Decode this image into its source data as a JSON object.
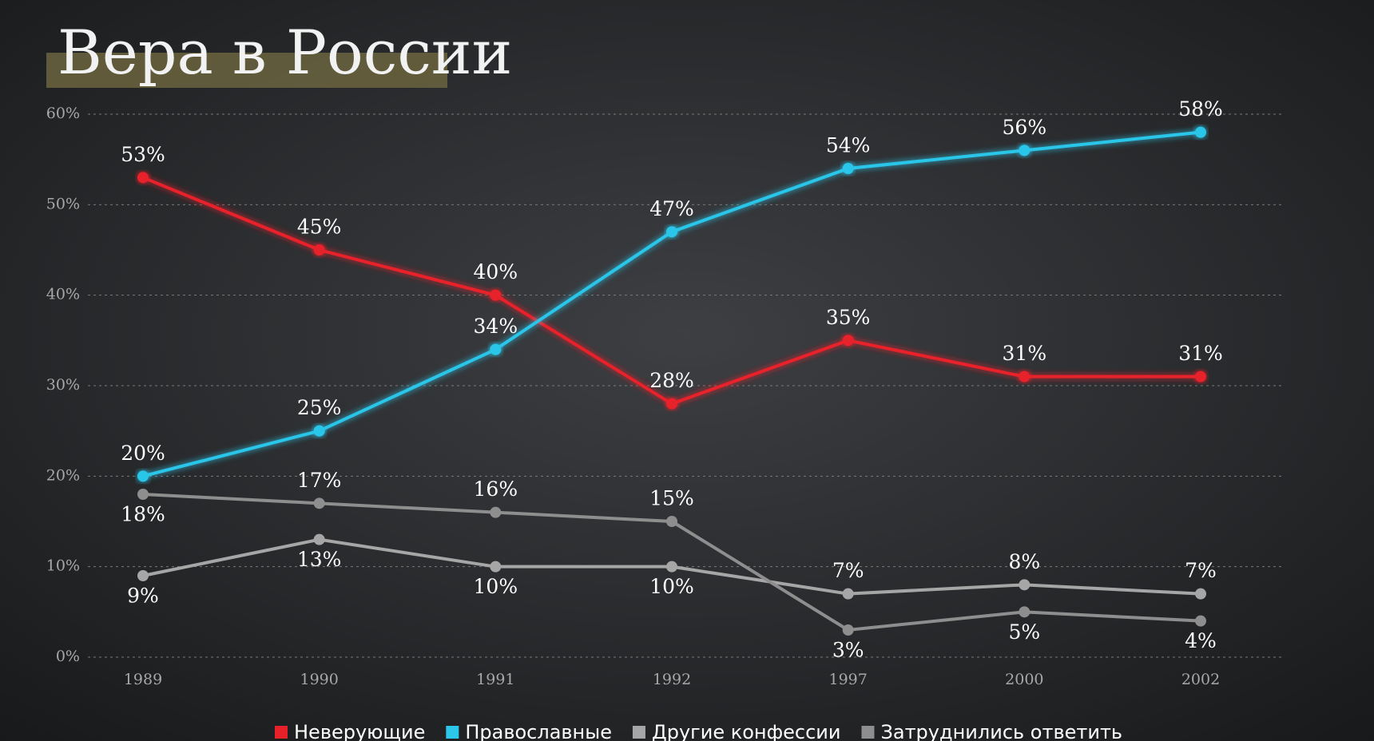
{
  "chart_data": {
    "type": "line",
    "title": "Вера в России",
    "categories": [
      "1989",
      "1990",
      "1991",
      "1992",
      "1997",
      "2000",
      "2002"
    ],
    "ylim": [
      0,
      60
    ],
    "yticks": [
      {
        "value": 0,
        "label": "0%"
      },
      {
        "value": 10,
        "label": "10%"
      },
      {
        "value": 20,
        "label": "20%"
      },
      {
        "value": 30,
        "label": "30%"
      },
      {
        "value": 40,
        "label": "40%"
      },
      {
        "value": 50,
        "label": "50%"
      },
      {
        "value": 60,
        "label": "60%"
      }
    ],
    "grid": true,
    "legend": "bottom",
    "series": [
      {
        "name": "Неверующие",
        "color": "#e8202a",
        "values": [
          53,
          45,
          40,
          28,
          35,
          31,
          31
        ],
        "value_labels": [
          "53%",
          "45%",
          "40%",
          "28%",
          "35%",
          "31%",
          "31%"
        ]
      },
      {
        "name": "Православные",
        "color": "#2bc6ea",
        "values": [
          20,
          25,
          34,
          47,
          54,
          56,
          58
        ],
        "value_labels": [
          "20%",
          "25%",
          "34%",
          "47%",
          "54%",
          "56%",
          "58%"
        ]
      },
      {
        "name": "Другие конфессии",
        "color": "#a6a6a6",
        "values": [
          9,
          13,
          10,
          10,
          7,
          8,
          7
        ],
        "value_labels": [
          "9%",
          "13%",
          "10%",
          "10%",
          "7%",
          "8%",
          "7%"
        ]
      },
      {
        "name": "Затруднились ответить",
        "color": "#8e8e8e",
        "values": [
          18,
          17,
          16,
          15,
          3,
          5,
          4
        ],
        "value_labels": [
          "18%",
          "17%",
          "16%",
          "15%",
          "3%",
          "5%",
          "4%"
        ]
      }
    ]
  }
}
